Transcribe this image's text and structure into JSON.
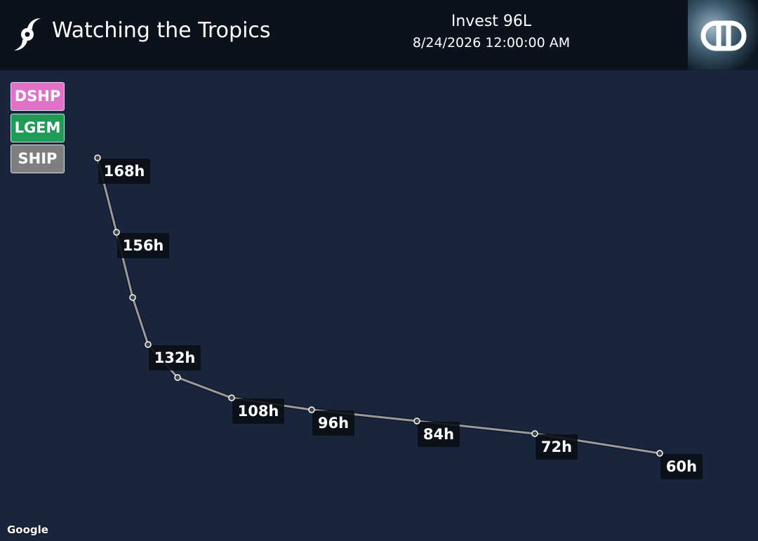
{
  "header": {
    "title": "Watching the Tropics",
    "storm": "Invest 96L",
    "datetime": "8/24/2026 12:00:00 AM"
  },
  "legend": [
    "DSHP",
    "LGEM",
    "SHIP"
  ],
  "track": {
    "labels": [
      "168h",
      "156h",
      "132h",
      "108h",
      "96h",
      "84h",
      "72h",
      "60h"
    ]
  },
  "attribution": "Google"
}
